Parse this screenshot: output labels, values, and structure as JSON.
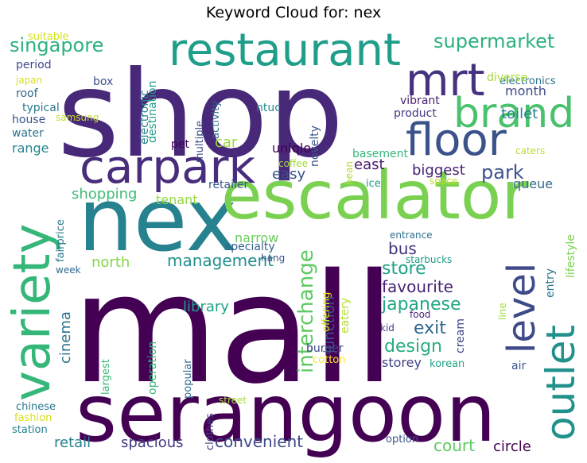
{
  "title": "Keyword Cloud for: nex",
  "chart_data": {
    "type": "wordcloud",
    "title": "Keyword Cloud for: nex",
    "colormap": "viridis",
    "words": [
      {
        "text": "mall",
        "color": "#440154"
      },
      {
        "text": "shop",
        "color": "#482878"
      },
      {
        "text": "serangoon",
        "color": "#440154"
      },
      {
        "text": "nex",
        "color": "#26828e"
      },
      {
        "text": "escalator",
        "color": "#7ad151"
      },
      {
        "text": "variety",
        "color": "#35b779"
      },
      {
        "text": "restaurant",
        "color": "#1f9e89"
      },
      {
        "text": "carpark",
        "color": "#472d7b"
      },
      {
        "text": "floor",
        "color": "#3b528b"
      },
      {
        "text": "mrt",
        "color": "#46327e"
      },
      {
        "text": "brand",
        "color": "#4ac16d"
      },
      {
        "text": "outlet",
        "color": "#21918c"
      },
      {
        "text": "level",
        "color": "#3e4a89"
      },
      {
        "text": "supermarket",
        "color": "#2db27d"
      },
      {
        "text": "singapore",
        "color": "#2db27d"
      },
      {
        "text": "interchange",
        "color": "#5ec962"
      },
      {
        "text": "park",
        "color": "#3b528b"
      },
      {
        "text": "store",
        "color": "#1fa187"
      },
      {
        "text": "japanese",
        "color": "#22a785"
      },
      {
        "text": "exit",
        "color": "#31688e"
      },
      {
        "text": "design",
        "color": "#27ad81"
      },
      {
        "text": "management",
        "color": "#218f8d"
      },
      {
        "text": "shopping",
        "color": "#3fbc73"
      },
      {
        "text": "court",
        "color": "#5ec962"
      },
      {
        "text": "cinema",
        "color": "#2c728e"
      },
      {
        "text": "convenient",
        "color": "#3e4989"
      },
      {
        "text": "spacious",
        "color": "#443983"
      },
      {
        "text": "retail",
        "color": "#26828e"
      },
      {
        "text": "bus",
        "color": "#46337e"
      },
      {
        "text": "favourite",
        "color": "#482475"
      },
      {
        "text": "biggest",
        "color": "#482173"
      },
      {
        "text": "library",
        "color": "#1fa088"
      },
      {
        "text": "north",
        "color": "#86d549"
      },
      {
        "text": "junction",
        "color": "#3b528b"
      },
      {
        "text": "circle",
        "color": "#440154"
      },
      {
        "text": "month",
        "color": "#3e4a89"
      },
      {
        "text": "toilet",
        "color": "#27808e"
      },
      {
        "text": "uniqlo",
        "color": "#440154"
      },
      {
        "text": "easy",
        "color": "#3b528b"
      },
      {
        "text": "east",
        "color": "#481b6d"
      },
      {
        "text": "car",
        "color": "#9bd93c"
      },
      {
        "text": "basement",
        "color": "#35b779"
      },
      {
        "text": "narrow",
        "color": "#6ccd5a"
      },
      {
        "text": "tenant",
        "color": "#95d840"
      },
      {
        "text": "range",
        "color": "#25858e"
      },
      {
        "text": "storey",
        "color": "#414487"
      },
      {
        "text": "burger",
        "color": "#3e4989"
      },
      {
        "text": "queue",
        "color": "#31688e"
      },
      {
        "text": "lifestyle",
        "color": "#7ad151"
      },
      {
        "text": "entry",
        "color": "#2a788e"
      },
      {
        "text": "line",
        "color": "#a0da39"
      },
      {
        "text": "air",
        "color": "#3b528b"
      },
      {
        "text": "korean",
        "color": "#20a386"
      },
      {
        "text": "cream",
        "color": "#3f4788"
      },
      {
        "text": "kid",
        "color": "#453781"
      },
      {
        "text": "food",
        "color": "#482677"
      },
      {
        "text": "starbucks",
        "color": "#1f9a8a"
      },
      {
        "text": "entrance",
        "color": "#2c728e"
      },
      {
        "text": "eatery",
        "color": "#b5de2b"
      },
      {
        "text": "offering",
        "color": "#d8e219"
      },
      {
        "text": "cotton",
        "color": "#fde725"
      },
      {
        "text": "popular",
        "color": "#2f6c8e"
      },
      {
        "text": "operation",
        "color": "#35b779"
      },
      {
        "text": "largest",
        "color": "#37b878"
      },
      {
        "text": "clothes",
        "color": "#443a83"
      },
      {
        "text": "street",
        "color": "#a5db36"
      },
      {
        "text": "option",
        "color": "#3b528b"
      },
      {
        "text": "chinese",
        "color": "#2a788e"
      },
      {
        "text": "fashion",
        "color": "#d8e219"
      },
      {
        "text": "station",
        "color": "#277f8e"
      },
      {
        "text": "week",
        "color": "#31688e"
      },
      {
        "text": "fairprice",
        "color": "#2a788e"
      },
      {
        "text": "specialty",
        "color": "#33628d"
      },
      {
        "text": "hang",
        "color": "#3b528b"
      },
      {
        "text": "retailer",
        "color": "#39568c"
      },
      {
        "text": "coffee",
        "color": "#a0da39"
      },
      {
        "text": "ice",
        "color": "#1f9e89"
      },
      {
        "text": "bean",
        "color": "#b2dd2d"
      },
      {
        "text": "space",
        "color": "#c2df23"
      },
      {
        "text": "caters",
        "color": "#b5de2b"
      },
      {
        "text": "product",
        "color": "#443983"
      },
      {
        "text": "vibrant",
        "color": "#481f70"
      },
      {
        "text": "electronics",
        "color": "#2c728e"
      },
      {
        "text": "diverse",
        "color": "#a5db36"
      },
      {
        "text": "ntuc",
        "color": "#23898e"
      },
      {
        "text": "novelty",
        "color": "#3b528b"
      },
      {
        "text": "activity",
        "color": "#2c728e"
      },
      {
        "text": "multiple",
        "color": "#3e4a89"
      },
      {
        "text": "pet",
        "color": "#440154"
      },
      {
        "text": "destination",
        "color": "#1f9e89"
      },
      {
        "text": "electronic",
        "color": "#25858e"
      },
      {
        "text": "box",
        "color": "#3b528b"
      },
      {
        "text": "roof",
        "color": "#31688e"
      },
      {
        "text": "typical",
        "color": "#2a788e"
      },
      {
        "text": "house",
        "color": "#3b528b"
      },
      {
        "text": "samsung",
        "color": "#c2df23"
      },
      {
        "text": "water",
        "color": "#2c728e"
      },
      {
        "text": "japan",
        "color": "#d8e219"
      },
      {
        "text": "period",
        "color": "#3e4989"
      },
      {
        "text": "suitable",
        "color": "#d2e21b"
      }
    ]
  }
}
